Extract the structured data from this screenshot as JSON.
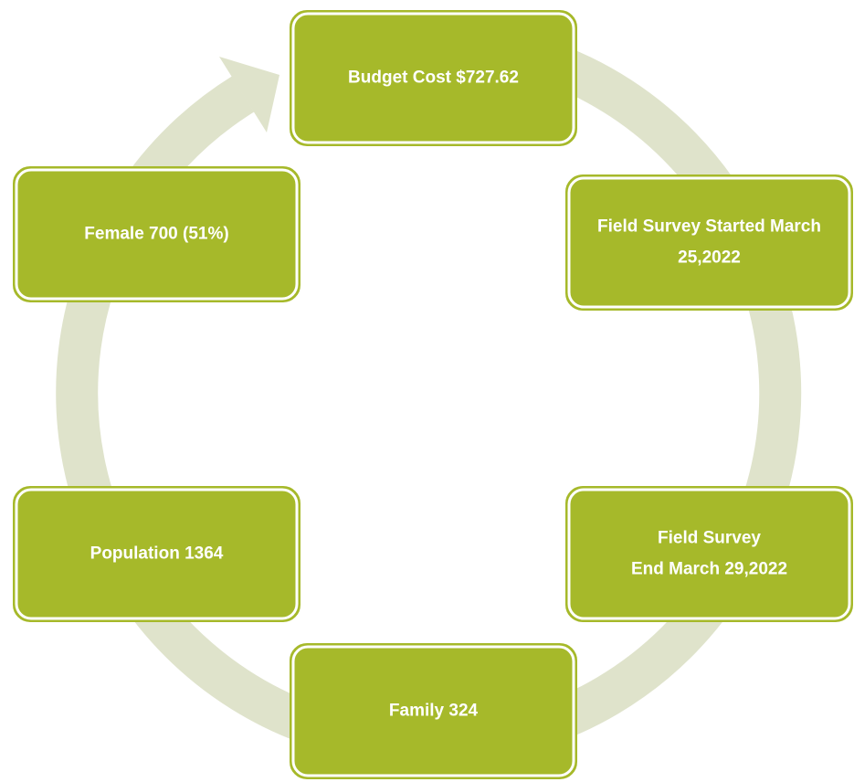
{
  "nodes": [
    {
      "lines": [
        "Budget Cost $727.62"
      ]
    },
    {
      "lines": [
        "Field Survey Started March",
        "25,2022"
      ]
    },
    {
      "lines": [
        "Field Survey",
        "End March 29,2022"
      ]
    },
    {
      "lines": [
        "Family 324"
      ]
    },
    {
      "lines": [
        "Population 1364"
      ]
    },
    {
      "lines": [
        "Female 700 (51%)"
      ]
    }
  ]
}
